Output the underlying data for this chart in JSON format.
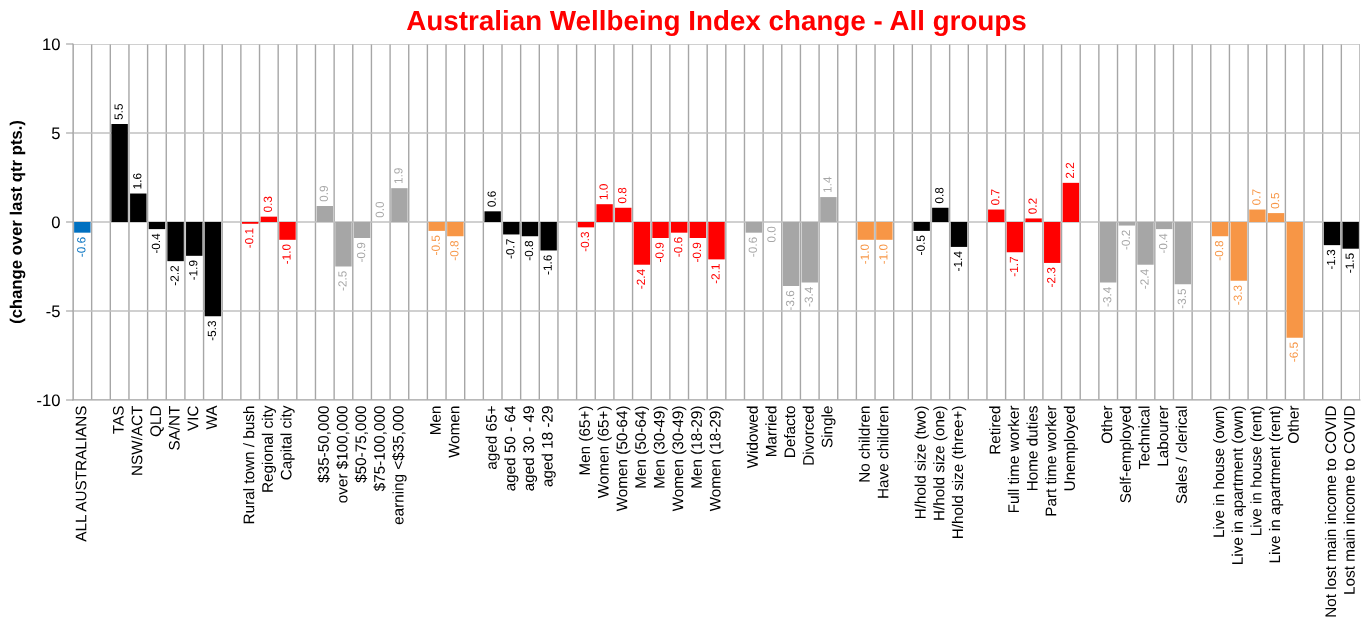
{
  "chart_data": {
    "type": "bar",
    "title": "Australian Wellbeing Index change - All groups",
    "ylabel": "(change over last qtr pts.)",
    "categories": [
      "ALL AUSTRALIANS",
      null,
      "TAS",
      "NSW/ACT",
      "QLD",
      "SA/NT",
      "VIC",
      "WA",
      null,
      "Rural town / bush",
      "Regional city",
      "Capital city",
      null,
      "$35-50,000",
      "over $100,000",
      "$50-75,000",
      "$75-100,000",
      "earning <$35,000",
      null,
      "Men",
      "Women",
      null,
      "aged 65+",
      "aged 50 - 64",
      "aged 30 - 49",
      "aged 18 -29",
      null,
      "Men (65+)",
      "Women (65+)",
      "Women (50-64)",
      "Men (50-64)",
      "Men (30-49)",
      "Women (30-49)",
      "Men (18-29)",
      "Women (18-29)",
      null,
      "Widowed",
      "Married",
      "Defacto",
      "Divorced",
      "Single",
      null,
      "No children",
      "Have children",
      null,
      "H/hold size (two)",
      "H/hold size (one)",
      "H/hold size (three+)",
      null,
      "Retired",
      "Full time worker",
      "Home duties",
      "Part time worker",
      "Unemployed",
      null,
      "Other",
      "Self-employed",
      "Technical",
      "Labourer",
      "Sales / clerical",
      null,
      "Live in house (own)",
      "Live in apartment (own)",
      "Live in house (rent)",
      "Live in apartment (rent)",
      "Other",
      null,
      "Not lost main income to COVID",
      "Lost main income to COVID"
    ],
    "values": [
      -0.6,
      null,
      5.5,
      1.6,
      -0.4,
      -2.2,
      -1.9,
      -5.3,
      null,
      -0.1,
      0.3,
      -1.0,
      null,
      0.9,
      -2.5,
      -0.9,
      0.0,
      1.9,
      null,
      -0.5,
      -0.8,
      null,
      0.6,
      -0.7,
      -0.8,
      -1.6,
      null,
      -0.3,
      1.0,
      0.8,
      -2.4,
      -0.9,
      -0.6,
      -0.9,
      -2.1,
      null,
      -0.6,
      -0.0,
      -3.6,
      -3.4,
      1.4,
      null,
      -1.0,
      -1.0,
      null,
      -0.5,
      0.8,
      -1.4,
      null,
      0.7,
      -1.7,
      0.2,
      -2.3,
      2.2,
      null,
      -3.4,
      -0.2,
      -2.4,
      -0.4,
      -3.5,
      null,
      -0.8,
      -3.3,
      0.7,
      0.5,
      -6.5,
      null,
      -1.3,
      -1.5
    ],
    "value_labels": [
      "-0.6",
      null,
      "5.5",
      "1.6",
      "-0.4",
      "-2.2",
      "-1.9",
      "-5.3",
      null,
      "-0.1",
      "0.3",
      "-1.0",
      null,
      "0.9",
      "-2.5",
      "-0.9",
      "0.0",
      "1.9",
      null,
      "-0.5",
      "-0.8",
      null,
      "0.6",
      "-0.7",
      "-0.8",
      "-1.6",
      null,
      "-0.3",
      "1.0",
      "0.8",
      "-2.4",
      "-0.9",
      "-0.6",
      "-0.9",
      "-2.1",
      null,
      "-0.6",
      "0.0",
      "-3.6",
      "-3.4",
      "1.4",
      null,
      "-1.0",
      "-1.0",
      null,
      "-0.5",
      "0.8",
      "-1.4",
      null,
      "0.7",
      "-1.7",
      "0.2",
      "-2.3",
      "2.2",
      null,
      "-3.4",
      "-0.2",
      "-2.4",
      "-0.4",
      "-3.5",
      null,
      "-0.8",
      "-3.3",
      "0.7",
      "0.5",
      "-6.5",
      null,
      "-1.3",
      "-1.5"
    ],
    "colors": [
      "#0070c0",
      null,
      "#000000",
      "#000000",
      "#000000",
      "#000000",
      "#000000",
      "#000000",
      null,
      "#ff0000",
      "#ff0000",
      "#ff0000",
      null,
      "#a6a6a6",
      "#a6a6a6",
      "#a6a6a6",
      "#a6a6a6",
      "#a6a6a6",
      null,
      "#f79646",
      "#f79646",
      null,
      "#000000",
      "#000000",
      "#000000",
      "#000000",
      null,
      "#ff0000",
      "#ff0000",
      "#ff0000",
      "#ff0000",
      "#ff0000",
      "#ff0000",
      "#ff0000",
      "#ff0000",
      null,
      "#a6a6a6",
      "#a6a6a6",
      "#a6a6a6",
      "#a6a6a6",
      "#a6a6a6",
      null,
      "#f79646",
      "#f79646",
      null,
      "#000000",
      "#000000",
      "#000000",
      null,
      "#ff0000",
      "#ff0000",
      "#ff0000",
      "#ff0000",
      "#ff0000",
      null,
      "#a6a6a6",
      "#a6a6a6",
      "#a6a6a6",
      "#a6a6a6",
      "#a6a6a6",
      null,
      "#f79646",
      "#f79646",
      "#f79646",
      "#f79646",
      "#f79646",
      null,
      "#000000",
      "#000000"
    ],
    "ylim": [
      -10,
      10
    ],
    "yticks": [
      -10,
      -5,
      0,
      5,
      10
    ],
    "grid": true
  }
}
